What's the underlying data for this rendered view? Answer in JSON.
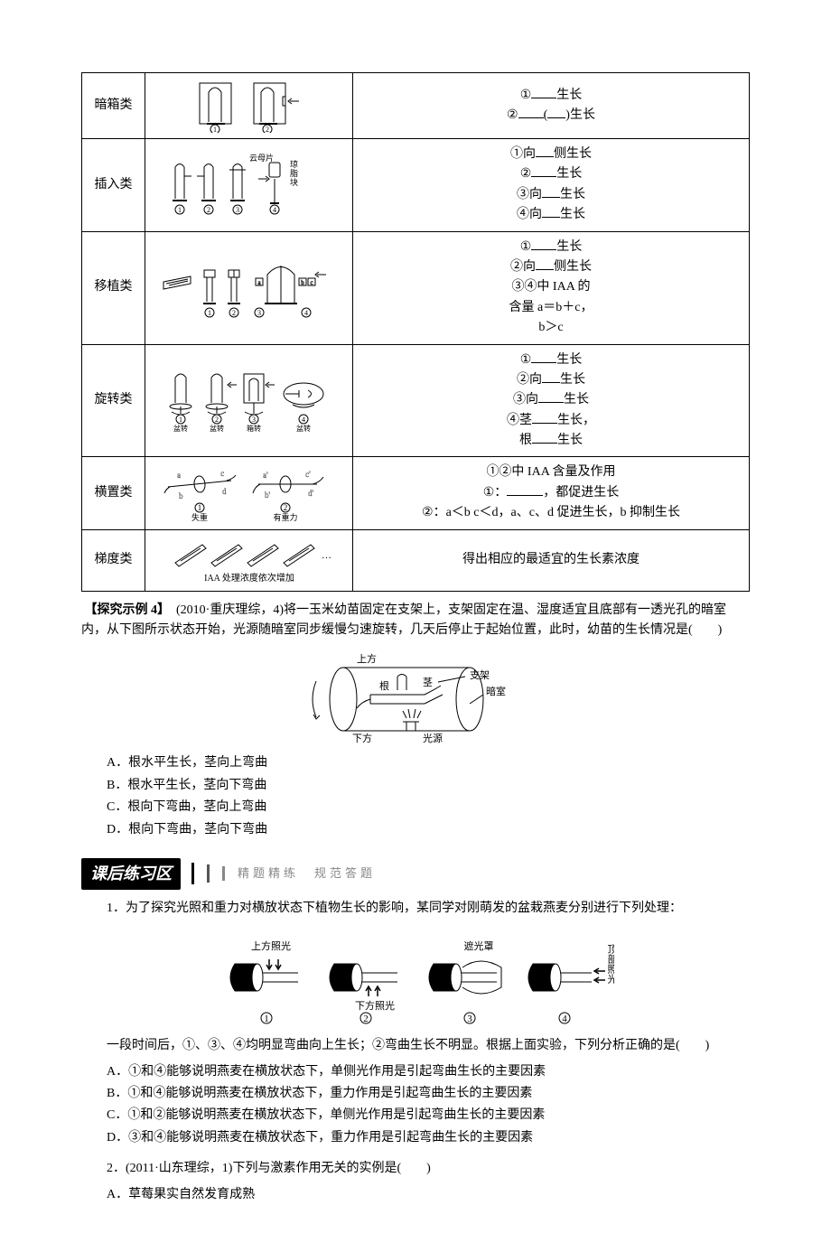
{
  "table": {
    "rows": [
      {
        "type": "暗箱类",
        "results": [
          "①<span class='blank'></span>生长",
          "②<span class='blank'></span>(<span class='blank w20'></span>)生长"
        ]
      },
      {
        "type": "插入类",
        "results": [
          "①向<span class='blank w20'></span>侧生长",
          "②<span class='blank'></span>生长",
          "③向<span class='blank w20'></span>生长",
          "④向<span class='blank w20'></span>生长"
        ]
      },
      {
        "type": "移植类",
        "results": [
          "①<span class='blank'></span>生长",
          "②向<span class='blank w20'></span>侧生长",
          "③④中 IAA 的",
          "含量 a＝b＋c，",
          "b＞c"
        ]
      },
      {
        "type": "旋转类",
        "results": [
          "①<span class='blank'></span>生长",
          "②向<span class='blank w20'></span>生长",
          "③向<span class='blank'></span>生长",
          "④茎<span class='blank'></span>生长，",
          "根<span class='blank'></span>生长"
        ]
      },
      {
        "type": "横置类",
        "results": [
          "①②中 IAA 含量及作用",
          "①：<span class='blank w40'></span>，都促进生长",
          "②：a＜b c＜d，a、c、d 促进生长，b 抑制生长"
        ]
      },
      {
        "type": "梯度类",
        "results": [
          "得出相应的最适宜的生长素浓度"
        ],
        "caption": "IAA 处理浓度依次增加"
      }
    ]
  },
  "example4": {
    "tag": "【探究示例 4】",
    "cite": "(2010·重庆理综，4)",
    "text1": "将一玉米幼苗固定在支架上，支架固定在温、湿度适宜且底部有一透光孔的暗室内，从下图所示状态开始，光源随暗室同步缓慢匀速旋转，几天后停止于起始位置，此时，幼苗的生长情况是(　　)",
    "fig_labels": {
      "top": "上方",
      "root": "根",
      "stem": "茎",
      "rack": "支架",
      "dark": "暗室",
      "bottom": "下方",
      "light": "光源"
    },
    "choices": {
      "A": "A．根水平生长，茎向上弯曲",
      "B": "B．根水平生长，茎向下弯曲",
      "C": "C．根向下弯曲，茎向上弯曲",
      "D": "D．根向下弯曲，茎向下弯曲"
    }
  },
  "section": {
    "title": "课后练习区",
    "sub": "精题精练　规范答题"
  },
  "q1": {
    "text": "1．为了探究光照和重力对横放状态下植物生长的影响，某同学对刚萌发的盆栽燕麦分别进行下列处理：",
    "fig_labels": {
      "toplight": "上方照光",
      "bottomlight": "下方照光",
      "shade": "遮光罩",
      "frontlight": "顶部照光"
    },
    "post": "一段时间后，①、③、④均明显弯曲向上生长；②弯曲生长不明显。根据上面实验，下列分析正确的是(　　)",
    "choices": {
      "A": "A．①和④能够说明燕麦在横放状态下，单侧光作用是引起弯曲生长的主要因素",
      "B": "B．①和④能够说明燕麦在横放状态下，重力作用是引起弯曲生长的主要因素",
      "C": "C．①和②能够说明燕麦在横放状态下，单侧光作用是引起弯曲生长的主要因素",
      "D": "D．③和④能够说明燕麦在横放状态下，重力作用是引起弯曲生长的主要因素"
    }
  },
  "q2": {
    "text": "2．(2011·山东理综，1)下列与激素作用无关的实例是(　　)",
    "choices": {
      "A": "A．草莓果实自然发育成熟"
    }
  }
}
